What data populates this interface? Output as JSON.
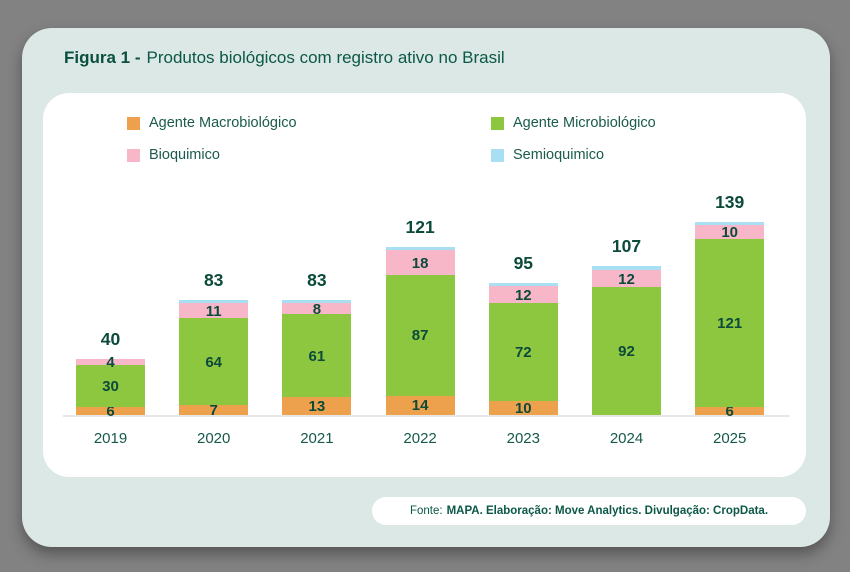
{
  "page": {
    "title_prefix": "Figura 1 -",
    "title_text": "Produtos biológicos com registro ativo no Brasil"
  },
  "footer": {
    "source_prefix": "Fonte:",
    "source_bold": "MAPA. Elaboração: Move Analytics. Divulgação: CropData."
  },
  "colors": {
    "background": "#828282",
    "card": "#DBE8E6",
    "panel": "#FFFFFF",
    "title_green": "#0B5846",
    "label_green": "#0C4A3B",
    "axis_line": "#E7E7E7",
    "macrobiologico": "#EDA14D",
    "microbiologico": "#8DC63F",
    "bioquimico": "#F8B7C9",
    "semioquimico": "#A9DFF3"
  },
  "chart_data": {
    "type": "bar",
    "stacked": true,
    "title": "Produtos biológicos com registro ativo no Brasil",
    "categories": [
      "2019",
      "2020",
      "2021",
      "2022",
      "2023",
      "2024",
      "2025"
    ],
    "series": [
      {
        "name": "Agente Macrobiológico",
        "color": "#EDA14D",
        "values": [
          6,
          7,
          13,
          14,
          10,
          0,
          6
        ]
      },
      {
        "name": "Agente Microbiológico",
        "color": "#8DC63F",
        "values": [
          30,
          64,
          61,
          87,
          72,
          92,
          121
        ]
      },
      {
        "name": "Bioquimico",
        "color": "#F8B7C9",
        "values": [
          4,
          11,
          8,
          18,
          12,
          12,
          10
        ]
      },
      {
        "name": "Semioquimico",
        "color": "#A9DFF3",
        "values": [
          0,
          1,
          1,
          2,
          1,
          3,
          2
        ]
      }
    ],
    "totals": [
      40,
      83,
      83,
      121,
      95,
      107,
      139
    ],
    "xlabel": "",
    "ylabel": "",
    "ylim": [
      0,
      150
    ],
    "grid": false,
    "legend_position": "top",
    "segment_label_min_value": 4
  }
}
